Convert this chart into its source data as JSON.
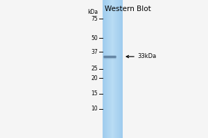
{
  "title": "Western Blot",
  "bg_color": "#f5f5f5",
  "lane_color_center": "#a8d0ee",
  "lane_color_edge": "#7ab0d8",
  "y_markers": [
    75,
    50,
    37,
    25,
    20,
    15,
    10
  ],
  "band_label": "33kDa",
  "band_color": "#4a6a8a",
  "fig_width": 3.0,
  "fig_height": 2.0,
  "dpi": 100
}
